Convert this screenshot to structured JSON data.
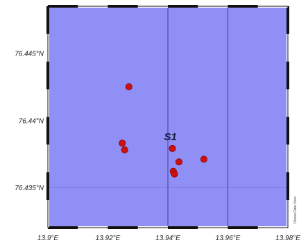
{
  "map": {
    "water_color": "#8f8ff5",
    "grid_line_color": "#3b3b9e",
    "border_color": "#111111",
    "point_color": "#cc1111",
    "point_edge_color": "#8a0000",
    "station_label_color": "#1a1a3a",
    "lon_range": [
      13.9,
      13.98
    ],
    "lat_range": [
      76.432,
      76.4485
    ],
    "lon_ticks": [
      13.9,
      13.92,
      13.94,
      13.96,
      13.98
    ],
    "lat_ticks": [
      76.435,
      76.44,
      76.445
    ],
    "gridlines_lon": [
      13.94,
      13.96
    ],
    "gridlines_lat": [
      76.435
    ]
  },
  "labels": {
    "lon": [
      "13.9°E",
      "13.92°E",
      "13.94°E",
      "13.96°E",
      "13.98°E"
    ],
    "lat": [
      "76.435°N",
      "76.44°N",
      "76.445°N"
    ],
    "station": "S1",
    "credit": "Ocean Data View"
  },
  "chart_data": {
    "type": "scatter",
    "title": "",
    "xlabel": "",
    "ylabel": "",
    "xlim": [
      13.9,
      13.98
    ],
    "ylim": [
      76.432,
      76.4485
    ],
    "grid": true,
    "points": [
      {
        "x": 13.927,
        "y": 76.4425
      },
      {
        "x": 13.9248,
        "y": 76.4383
      },
      {
        "x": 13.9256,
        "y": 76.4378
      },
      {
        "x": 13.9415,
        "y": 76.4379,
        "label": "S1"
      },
      {
        "x": 13.9437,
        "y": 76.4369
      },
      {
        "x": 13.952,
        "y": 76.4371
      },
      {
        "x": 13.9418,
        "y": 76.4362
      },
      {
        "x": 13.9422,
        "y": 76.436
      }
    ]
  }
}
